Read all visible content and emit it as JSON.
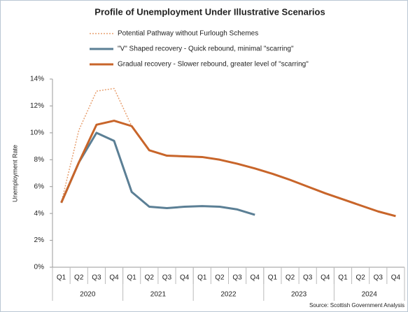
{
  "chart_data": {
    "type": "line",
    "title": "Profile of Unemployment Under Illustrative Scenarios",
    "y_label": "Unemployment Rate",
    "source": "Source: Scottish Government Analysis",
    "categories": [
      "Q1",
      "Q2",
      "Q3",
      "Q4",
      "Q1",
      "Q2",
      "Q3",
      "Q4",
      "Q1",
      "Q2",
      "Q3",
      "Q4",
      "Q1",
      "Q2",
      "Q3",
      "Q4",
      "Q1",
      "Q2",
      "Q3",
      "Q4"
    ],
    "groups": [
      "2020",
      "2021",
      "2022",
      "2023",
      "2024"
    ],
    "series": [
      {
        "name": "Potential Pathway without Furlough Schemes",
        "color": "#e8a070",
        "line_style": "dotted",
        "values": [
          4.8,
          10.2,
          13.1,
          13.3,
          10.5,
          null,
          null,
          null,
          null,
          null,
          null,
          null,
          null,
          null,
          null,
          null,
          null,
          null,
          null,
          null
        ]
      },
      {
        "name": "\"V\" Shaped recovery - Quick rebound, minimal \"scarring\"",
        "color": "#5b7f95",
        "line_style": "solid",
        "values": [
          4.8,
          7.8,
          10.0,
          9.4,
          5.6,
          4.5,
          4.4,
          4.5,
          4.55,
          4.5,
          4.3,
          3.9,
          null,
          null,
          null,
          null,
          null,
          null,
          null,
          null
        ]
      },
      {
        "name": "Gradual recovery - Slower rebound, greater level of \"scarring\"",
        "color": "#c8652a",
        "line_style": "solid",
        "values": [
          4.8,
          7.8,
          10.6,
          10.9,
          10.5,
          8.7,
          8.3,
          8.25,
          8.2,
          8.0,
          7.7,
          7.35,
          6.95,
          6.5,
          6.0,
          5.5,
          5.05,
          4.6,
          4.15,
          3.8
        ]
      }
    ],
    "ylim": [
      0,
      14
    ],
    "yticks": [
      {
        "value": 0,
        "label": "0%"
      },
      {
        "value": 2,
        "label": "2%"
      },
      {
        "value": 4,
        "label": "4%"
      },
      {
        "value": 6,
        "label": "6%"
      },
      {
        "value": 8,
        "label": "8%"
      },
      {
        "value": 10,
        "label": "10%"
      },
      {
        "value": 12,
        "label": "12%"
      },
      {
        "value": 14,
        "label": "14%"
      }
    ],
    "grid": false
  }
}
